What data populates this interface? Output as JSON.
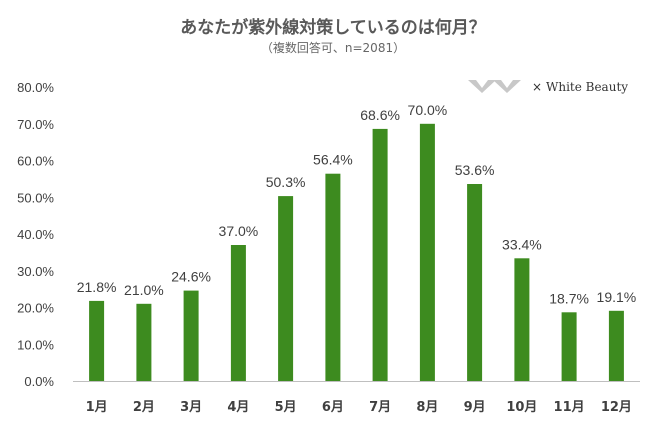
{
  "chart_data": {
    "type": "bar",
    "title": "あなたが紫外線対策しているのは何月？",
    "subtitle": "（複数回答可、n=2081）",
    "categories": [
      "1月",
      "2月",
      "3月",
      "4月",
      "5月",
      "6月",
      "7月",
      "8月",
      "9月",
      "10月",
      "11月",
      "12月"
    ],
    "values": [
      21.8,
      21.0,
      24.6,
      37.0,
      50.3,
      56.4,
      68.6,
      70.0,
      53.6,
      33.4,
      18.7,
      19.1
    ],
    "data_labels": [
      "21.8%",
      "21.0%",
      "24.6%",
      "37.0%",
      "50.3%",
      "56.4%",
      "68.6%",
      "70.0%",
      "53.6%",
      "33.4%",
      "18.7%",
      "19.1%"
    ],
    "ylim": [
      0,
      80
    ],
    "yticks": [
      "0.0%",
      "10.0%",
      "20.0%",
      "30.0%",
      "40.0%",
      "50.0%",
      "60.0%",
      "70.0%",
      "80.0%"
    ],
    "xlabel": "",
    "ylabel": "",
    "grid": false,
    "bar_color": "#3d8b1f"
  },
  "brand": {
    "times": "×",
    "name": "White Beauty"
  }
}
